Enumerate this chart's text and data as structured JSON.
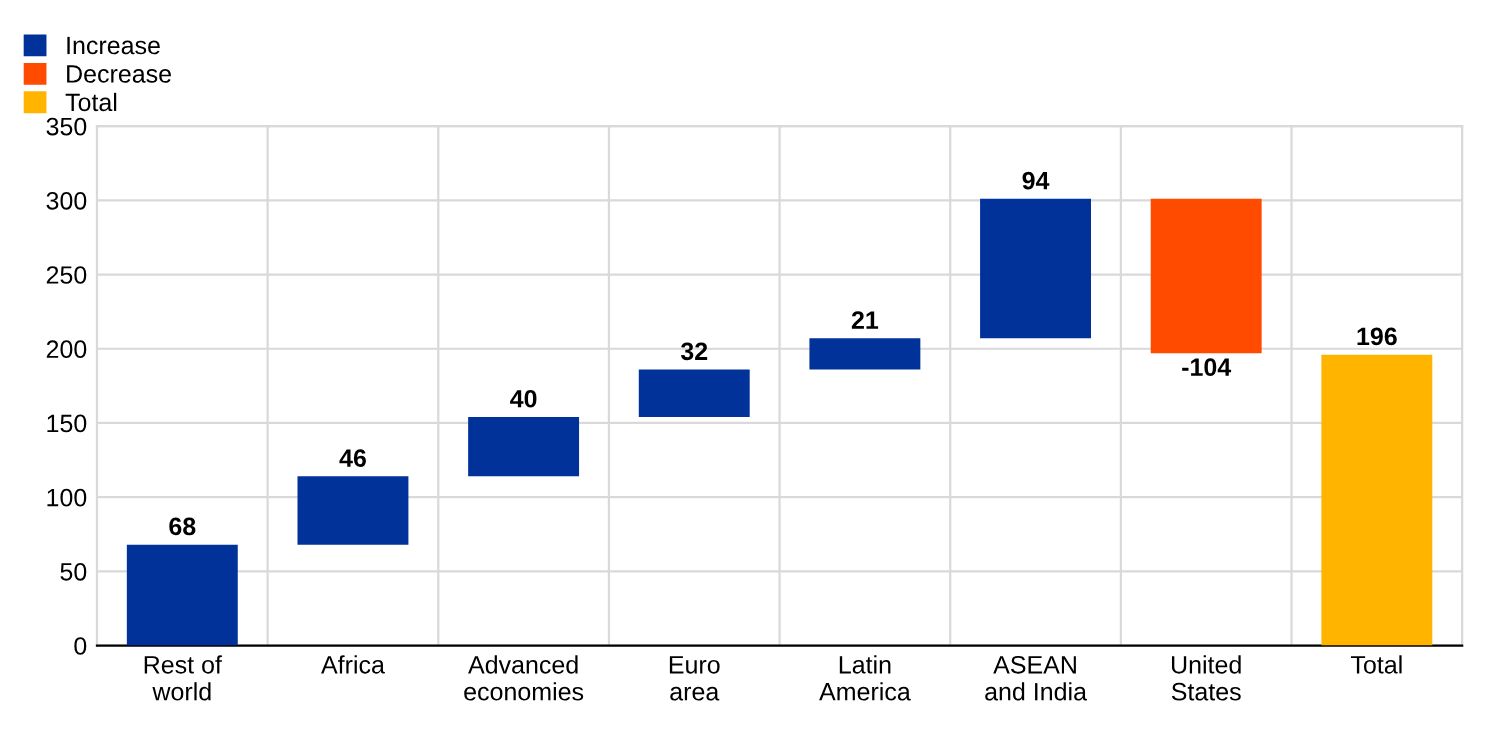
{
  "chart_data": {
    "type": "bar",
    "categories": [
      "Rest of\nworld",
      "Africa",
      "Advanced\neconomies",
      "Euro\narea",
      "Latin\nAmerica",
      "ASEAN\nand India",
      "United\nStates",
      "Total"
    ],
    "series": [
      {
        "name": "Increase",
        "color": "#003299",
        "values": [
          68,
          46,
          40,
          32,
          21,
          94,
          null,
          null
        ],
        "base": [
          0,
          68,
          114,
          154,
          186,
          207,
          null,
          null
        ]
      },
      {
        "name": "Decrease",
        "color": "#ff4b00",
        "values": [
          null,
          null,
          null,
          null,
          null,
          null,
          -104,
          null
        ],
        "base": [
          null,
          null,
          null,
          null,
          null,
          null,
          301,
          null
        ]
      },
      {
        "name": "Total",
        "color": "#ffb400",
        "values": [
          null,
          null,
          null,
          null,
          null,
          null,
          null,
          196
        ],
        "base": [
          null,
          null,
          null,
          null,
          null,
          null,
          null,
          0
        ]
      }
    ],
    "ylim": [
      0,
      350
    ],
    "yticks": [
      0,
      50,
      100,
      150,
      200,
      250,
      300,
      350
    ],
    "grid": true,
    "legend": "top left",
    "data_labels": true
  }
}
